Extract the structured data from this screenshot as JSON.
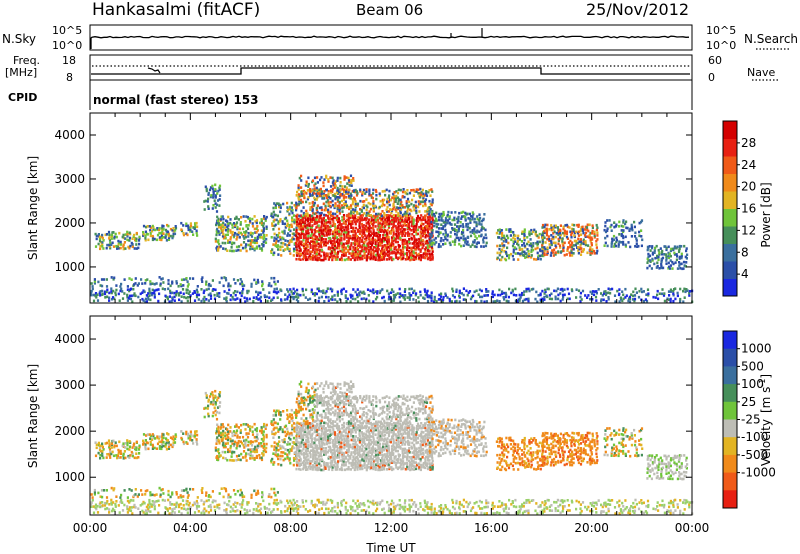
{
  "header": {
    "station": "Hankasalmi (fitACF)",
    "beam": "Beam 06",
    "date": "25/Nov/2012"
  },
  "panels": {
    "nsky": {
      "left_label": "N.Sky",
      "right_label": "N.Search",
      "left_ticks": [
        "10^5",
        "10^0"
      ],
      "right_ticks": [
        "10^5",
        "10^0"
      ]
    },
    "freq": {
      "left_label_1": "Freq.",
      "left_label_2": "[MHz]",
      "left_ticks": [
        "18",
        "8"
      ],
      "right_ticks": [
        "60",
        "0"
      ],
      "right_label": "Nave"
    },
    "cpid": {
      "label": "CPID",
      "text": "normal (fast stereo) 153"
    }
  },
  "colors": {
    "power_scale": [
      "#1a28e0",
      "#2b4fa8",
      "#3a6f9e",
      "#468f5a",
      "#6fc43a",
      "#e2b423",
      "#f08a1a",
      "#f05a18",
      "#e82012",
      "#d40000"
    ],
    "velocity_scale": [
      "#1a28e0",
      "#2b4fa8",
      "#3a6f9e",
      "#468f5a",
      "#6fc43a",
      "#bdbdb5",
      "#e2b423",
      "#f08a1a",
      "#f05a18",
      "#e82012"
    ],
    "ground_scatter": "#bdbdb5"
  },
  "chart_data": [
    {
      "type": "heatmap",
      "name": "power",
      "ylabel": "Slant Range [km]",
      "xlabel": "",
      "yticks": [
        "1000",
        "2000",
        "3000",
        "4000"
      ],
      "ylim": [
        180,
        4500
      ],
      "xlim_hours": [
        0,
        24
      ],
      "colorbar_label": "Power [dB]",
      "colorbar_ticks": [
        "4",
        "8",
        "12",
        "16",
        "20",
        "24",
        "28"
      ],
      "colorbar_range": [
        0,
        32
      ]
    },
    {
      "type": "heatmap",
      "name": "velocity",
      "ylabel": "Slant Range [km]",
      "xlabel": "Time UT",
      "yticks": [
        "1000",
        "2000",
        "3000",
        "4000"
      ],
      "ylim": [
        180,
        4500
      ],
      "xlim_hours": [
        0,
        24
      ],
      "xticks": [
        "00:00",
        "04:00",
        "08:00",
        "12:00",
        "16:00",
        "20:00",
        "00:00"
      ],
      "colorbar_label": "Velocity [m s^-1]",
      "colorbar_label_main": "Velocity",
      "colorbar_label_units": "[m s",
      "colorbar_label_exp": "-1",
      "colorbar_label_close": "]",
      "colorbar_ticks": [
        "1000",
        "500",
        "100",
        "25",
        "-25",
        "-100",
        "-500",
        "-1000"
      ]
    }
  ]
}
